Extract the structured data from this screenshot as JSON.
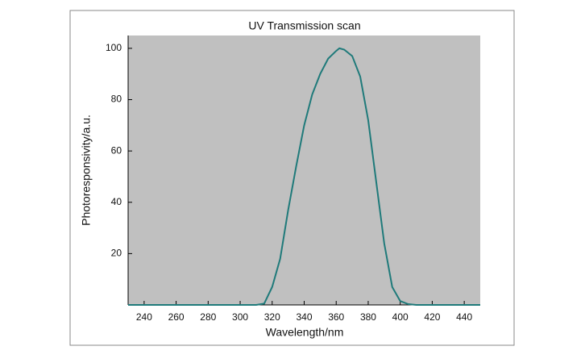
{
  "chart_data": {
    "type": "line",
    "title": "UV Transmission scan",
    "x_label": "Wavelength/nm",
    "y_label": "Photoresponsivity/a.u.",
    "x": [
      230,
      240,
      250,
      260,
      270,
      280,
      290,
      300,
      310,
      315,
      320,
      325,
      330,
      335,
      340,
      345,
      350,
      355,
      360,
      362,
      365,
      370,
      375,
      380,
      385,
      390,
      395,
      400,
      405,
      410,
      420,
      430,
      440,
      450
    ],
    "series": [
      {
        "name": "UV",
        "color": "#1f7a7a",
        "values": [
          0,
          0,
          0,
          0,
          0,
          0,
          0,
          0,
          0,
          0.5,
          7,
          18,
          37,
          54,
          70,
          82,
          90,
          96,
          99,
          100,
          99.5,
          97,
          89,
          72,
          48,
          24,
          7,
          1.5,
          0.3,
          0,
          0,
          0,
          0,
          0
        ]
      }
    ],
    "xlim": [
      230,
      450
    ],
    "xticks": [
      240,
      260,
      280,
      300,
      320,
      340,
      360,
      380,
      400,
      420,
      440
    ],
    "ylim": [
      0,
      105
    ],
    "yticks": [
      20,
      40,
      60,
      80,
      100
    ],
    "plot_background": "#c0c0c0"
  }
}
